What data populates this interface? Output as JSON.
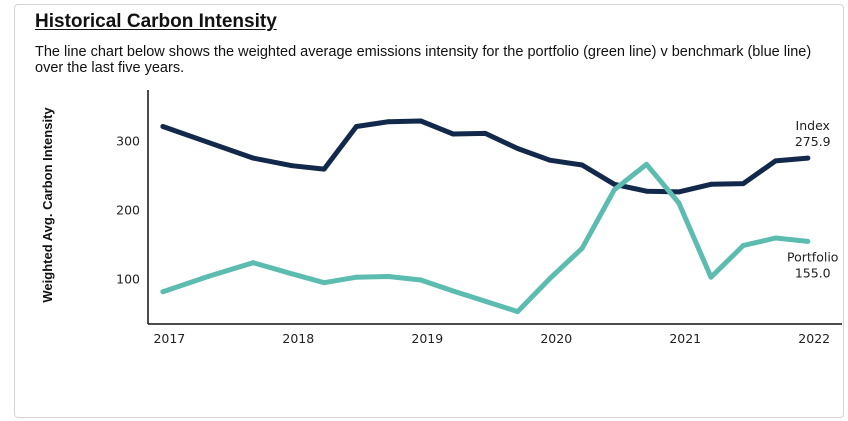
{
  "header": {
    "title": "Historical Carbon Intensity",
    "description": "The line chart below shows the weighted average emissions intensity for the portfolio (green line) v benchmark (blue line) over the last five years."
  },
  "chart_data": {
    "type": "line",
    "title": "Historical Carbon Intensity",
    "xlabel": "",
    "ylabel": "Weighted Avg. Carbon Intensity",
    "xlim": [
      2016.85,
      2022.2
    ],
    "ylim": [
      35,
      375
    ],
    "x_ticks": [
      "2017",
      "2018",
      "2019",
      "2020",
      "2021",
      "2022"
    ],
    "y_ticks": [
      "100",
      "200",
      "300"
    ],
    "grid": false,
    "series": [
      {
        "name": "Index",
        "color": "#13294b",
        "end_value_label": "275.9",
        "x": [
          2016.95,
          2017.3,
          2017.65,
          2017.95,
          2018.2,
          2018.45,
          2018.7,
          2018.95,
          2019.2,
          2019.45,
          2019.7,
          2019.95,
          2020.2,
          2020.45,
          2020.7,
          2020.95,
          2021.2,
          2021.45,
          2021.7,
          2021.95
        ],
        "values": [
          322,
          299,
          276,
          265,
          260,
          322,
          329,
          330,
          311,
          312,
          290,
          273,
          266,
          238,
          228,
          227,
          238,
          239,
          272,
          276
        ]
      },
      {
        "name": "Portfolio",
        "color": "#5dbcb0",
        "end_value_label": "155.0",
        "x": [
          2016.95,
          2017.3,
          2017.65,
          2017.95,
          2018.2,
          2018.45,
          2018.7,
          2018.95,
          2019.2,
          2019.45,
          2019.7,
          2019.95,
          2020.2,
          2020.45,
          2020.7,
          2020.95,
          2021.2,
          2021.45,
          2021.7,
          2021.95
        ],
        "values": [
          82,
          104,
          124,
          108,
          95,
          103,
          104,
          99,
          83,
          68,
          53,
          101,
          145,
          230,
          267,
          211,
          103,
          149,
          160,
          155
        ]
      }
    ]
  }
}
